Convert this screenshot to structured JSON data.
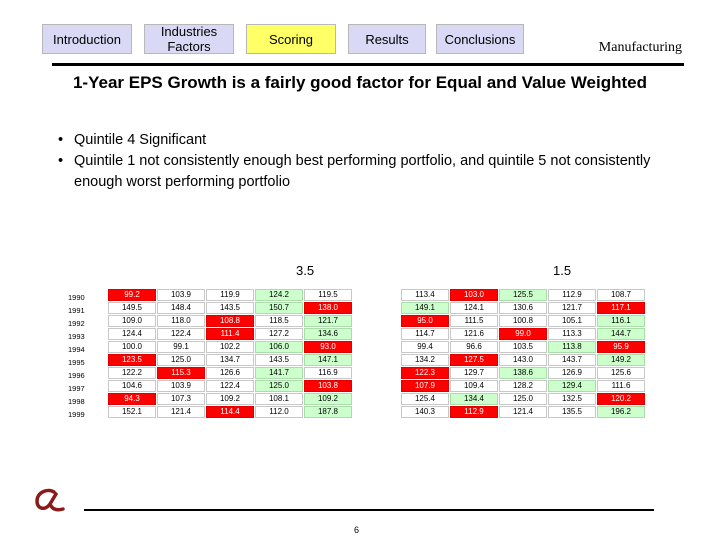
{
  "nav": {
    "tabs": [
      {
        "label": "Introduction"
      },
      {
        "label": "Industries Factors"
      },
      {
        "label": "Scoring"
      },
      {
        "label": "Results"
      },
      {
        "label": "Conclusions"
      }
    ]
  },
  "section_label": "Manufacturing",
  "title": "1-Year EPS Growth is a fairly good factor for Equal and Value Weighted",
  "bullets": [
    "Quintile 4 Significant",
    "Quintile 1 not consistently enough best performing portfolio, and quintile 5 not consistently enough worst performing portfolio"
  ],
  "bullet_glyph": "•",
  "scores": {
    "left": "3.5",
    "right": "1.5"
  },
  "years": [
    "1990",
    "1991",
    "1992",
    "1993",
    "1994",
    "1995",
    "1996",
    "1997",
    "1998",
    "1999"
  ],
  "table_left": [
    [
      {
        "v": "99.2",
        "c": "r"
      },
      {
        "v": "103.9",
        "c": ""
      },
      {
        "v": "119.9",
        "c": ""
      },
      {
        "v": "124.2",
        "c": "g"
      },
      {
        "v": "119.5",
        "c": ""
      }
    ],
    [
      {
        "v": "149.5",
        "c": ""
      },
      {
        "v": "148.4",
        "c": ""
      },
      {
        "v": "143.5",
        "c": ""
      },
      {
        "v": "150.7",
        "c": "g"
      },
      {
        "v": "138.0",
        "c": "r"
      }
    ],
    [
      {
        "v": "109.0",
        "c": ""
      },
      {
        "v": "118.0",
        "c": ""
      },
      {
        "v": "108.8",
        "c": "r"
      },
      {
        "v": "118.5",
        "c": ""
      },
      {
        "v": "121.7",
        "c": "g"
      }
    ],
    [
      {
        "v": "124.4",
        "c": ""
      },
      {
        "v": "122.4",
        "c": ""
      },
      {
        "v": "111.4",
        "c": "r"
      },
      {
        "v": "127.2",
        "c": ""
      },
      {
        "v": "134.6",
        "c": "g"
      }
    ],
    [
      {
        "v": "100.0",
        "c": ""
      },
      {
        "v": "99.1",
        "c": ""
      },
      {
        "v": "102.2",
        "c": ""
      },
      {
        "v": "106.0",
        "c": "g"
      },
      {
        "v": "93.0",
        "c": "r"
      }
    ],
    [
      {
        "v": "123.5",
        "c": "r"
      },
      {
        "v": "125.0",
        "c": ""
      },
      {
        "v": "134.7",
        "c": ""
      },
      {
        "v": "143.5",
        "c": ""
      },
      {
        "v": "147.1",
        "c": "g"
      }
    ],
    [
      {
        "v": "122.2",
        "c": ""
      },
      {
        "v": "115.3",
        "c": "r"
      },
      {
        "v": "126.6",
        "c": ""
      },
      {
        "v": "141.7",
        "c": "g"
      },
      {
        "v": "116.9",
        "c": ""
      }
    ],
    [
      {
        "v": "104.6",
        "c": ""
      },
      {
        "v": "103.9",
        "c": ""
      },
      {
        "v": "122.4",
        "c": ""
      },
      {
        "v": "125.0",
        "c": "g"
      },
      {
        "v": "103.8",
        "c": "r"
      }
    ],
    [
      {
        "v": "94.3",
        "c": "r"
      },
      {
        "v": "107.3",
        "c": ""
      },
      {
        "v": "109.2",
        "c": ""
      },
      {
        "v": "108.1",
        "c": ""
      },
      {
        "v": "109.2",
        "c": "g"
      }
    ],
    [
      {
        "v": "152.1",
        "c": ""
      },
      {
        "v": "121.4",
        "c": ""
      },
      {
        "v": "114.4",
        "c": "r"
      },
      {
        "v": "112.0",
        "c": ""
      },
      {
        "v": "187.8",
        "c": "g"
      }
    ]
  ],
  "table_right": [
    [
      {
        "v": "113.4",
        "c": ""
      },
      {
        "v": "103.0",
        "c": "r"
      },
      {
        "v": "125.5",
        "c": "g"
      },
      {
        "v": "112.9",
        "c": ""
      },
      {
        "v": "108.7",
        "c": ""
      }
    ],
    [
      {
        "v": "149.1",
        "c": "g"
      },
      {
        "v": "124.1",
        "c": ""
      },
      {
        "v": "130.6",
        "c": ""
      },
      {
        "v": "121.7",
        "c": ""
      },
      {
        "v": "117.1",
        "c": "r"
      }
    ],
    [
      {
        "v": "95.0",
        "c": "r"
      },
      {
        "v": "111.5",
        "c": ""
      },
      {
        "v": "100.8",
        "c": ""
      },
      {
        "v": "105.1",
        "c": ""
      },
      {
        "v": "116.1",
        "c": "g"
      }
    ],
    [
      {
        "v": "114.7",
        "c": ""
      },
      {
        "v": "121.6",
        "c": ""
      },
      {
        "v": "99.0",
        "c": "r"
      },
      {
        "v": "113.3",
        "c": ""
      },
      {
        "v": "144.7",
        "c": "g"
      }
    ],
    [
      {
        "v": "99.4",
        "c": ""
      },
      {
        "v": "96.6",
        "c": ""
      },
      {
        "v": "103.5",
        "c": ""
      },
      {
        "v": "113.8",
        "c": "g"
      },
      {
        "v": "95.9",
        "c": "r"
      }
    ],
    [
      {
        "v": "134.2",
        "c": ""
      },
      {
        "v": "127.5",
        "c": "r"
      },
      {
        "v": "143.0",
        "c": ""
      },
      {
        "v": "143.7",
        "c": ""
      },
      {
        "v": "149.2",
        "c": "g"
      }
    ],
    [
      {
        "v": "122.3",
        "c": "r"
      },
      {
        "v": "129.7",
        "c": ""
      },
      {
        "v": "138.6",
        "c": "g"
      },
      {
        "v": "126.9",
        "c": ""
      },
      {
        "v": "125.6",
        "c": ""
      }
    ],
    [
      {
        "v": "107.9",
        "c": "r"
      },
      {
        "v": "109.4",
        "c": ""
      },
      {
        "v": "128.2",
        "c": ""
      },
      {
        "v": "129.4",
        "c": "g"
      },
      {
        "v": "111.6",
        "c": ""
      }
    ],
    [
      {
        "v": "125.4",
        "c": ""
      },
      {
        "v": "134.4",
        "c": "g"
      },
      {
        "v": "125.0",
        "c": ""
      },
      {
        "v": "132.5",
        "c": ""
      },
      {
        "v": "120.2",
        "c": "r"
      }
    ],
    [
      {
        "v": "140.3",
        "c": ""
      },
      {
        "v": "112.9",
        "c": "r"
      },
      {
        "v": "121.4",
        "c": ""
      },
      {
        "v": "135.5",
        "c": ""
      },
      {
        "v": "196.2",
        "c": "g"
      }
    ]
  ],
  "colors": {
    "accent_red": "#ff0000",
    "highlight_green": "#ccffcc",
    "logo": "#8b1a1a"
  },
  "logo_icon": "alpha-logo-icon",
  "page_number": "6"
}
